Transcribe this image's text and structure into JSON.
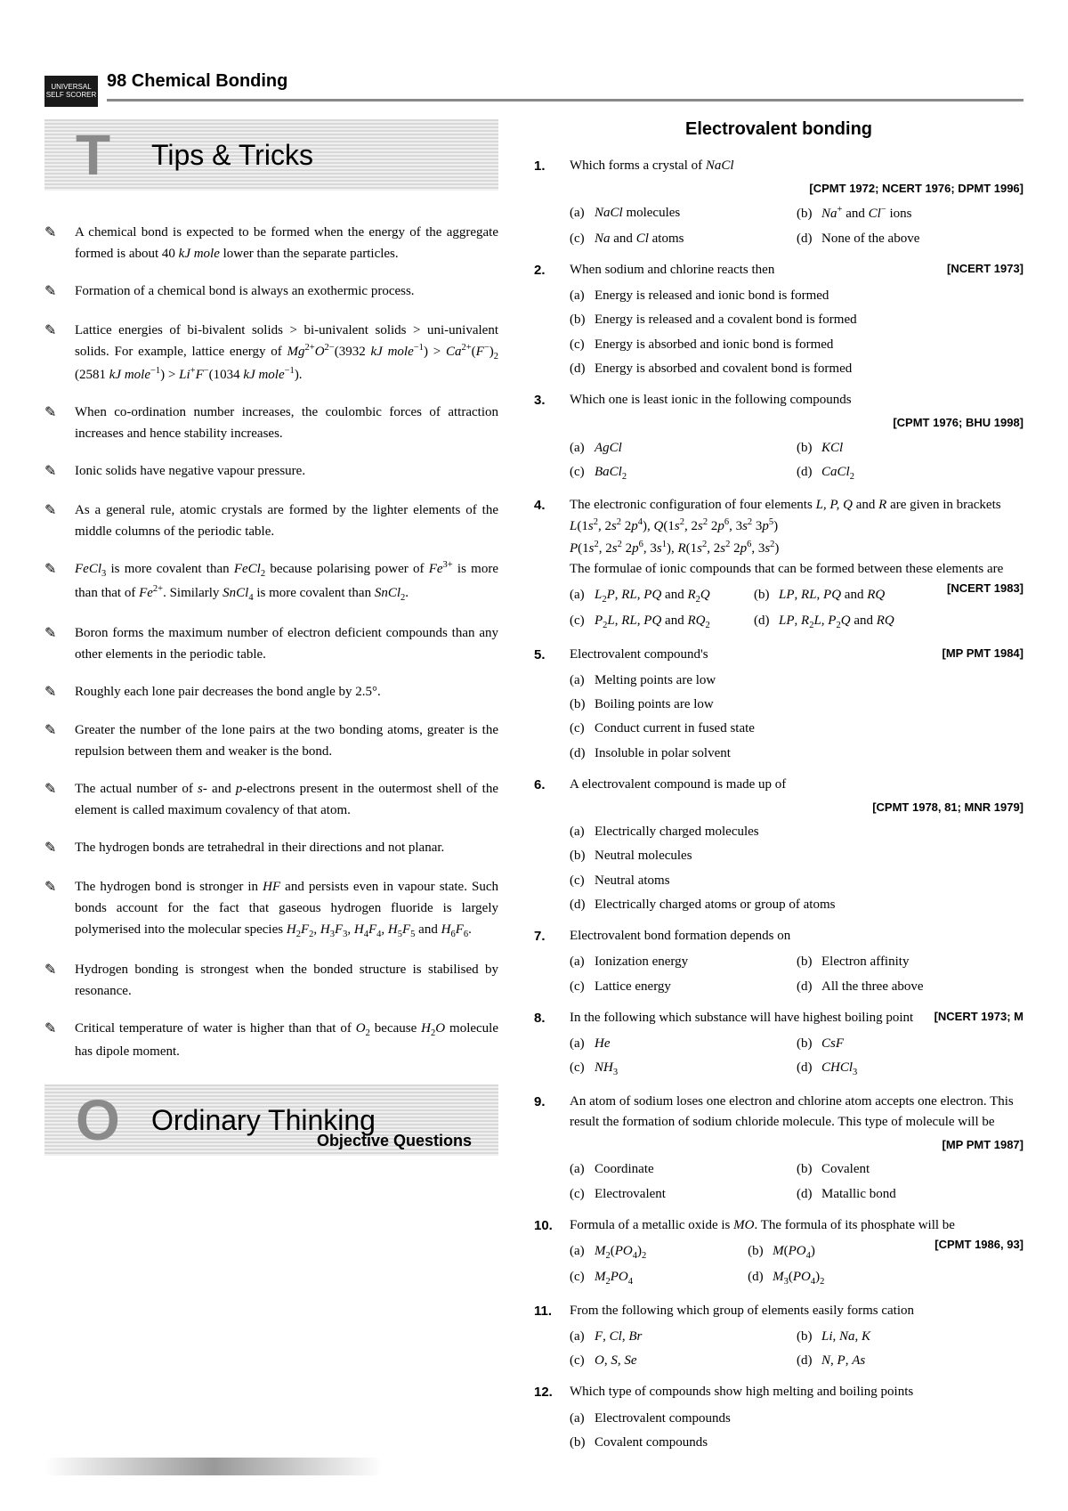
{
  "badge": {
    "line1": "UNIVERSAL",
    "line2": "SELF SCORER"
  },
  "header": "98 Chemical Bonding",
  "tips_banner": {
    "glyph": "T",
    "title": "Tips & Tricks"
  },
  "tips": [
    "A chemical bond is expected to be formed when the energy of the aggregate formed is about 40 <i>kJ mole</i> lower than the separate particles.",
    "Formation of a chemical bond is always an exothermic process.",
    "Lattice energies of bi-bivalent solids > bi-univalent solids > uni-univalent solids. For example, lattice energy of <i>Mg</i><sup>2+</sup><i>O</i><sup>2−</sup>(3932 <i>kJ mole</i><sup>−1</sup>) > <i>Ca</i><sup>2+</sup>(<i>F</i><sup>−</sup>)<sub>2</sub> (2581 <i>kJ mole</i><sup>−1</sup>) > <i>Li</i><sup>+</sup><i>F</i><sup>−</sup>(1034 <i>kJ mole</i><sup>−1</sup>).",
    "When co-ordination number increases, the coulombic forces of attraction increases and hence stability increases.",
    "Ionic solids have negative vapour pressure.",
    "As a general rule, atomic crystals are formed by the lighter elements of the middle columns of the periodic table.",
    "<i>FeCl</i><sub>3</sub> is more covalent than <i>FeCl</i><sub>2</sub> because polarising power of <i>Fe</i><sup>3+</sup> is more than that of <i>Fe</i><sup>2+</sup>. Similarly <i>SnCl</i><sub>4</sub> is more covalent than <i>SnCl</i><sub>2</sub>.",
    "Boron forms the maximum number of electron deficient compounds than any other elements in the periodic table.",
    "Roughly each lone pair decreases the bond angle by 2.5°.",
    "Greater the number of the lone pairs at the two bonding atoms, greater is the repulsion between them and weaker is the bond.",
    "The actual number of <i>s</i>- and <i>p</i>-electrons present in the outermost shell of the element is called maximum covalency of that atom.",
    "The hydrogen bonds are tetrahedral in their directions and not planar.",
    "The hydrogen bond is stronger in <i>HF</i> and persists even in vapour state. Such bonds account for the fact that gaseous hydrogen fluoride is largely polymerised into the molecular species <i>H</i><sub>2</sub><i>F</i><sub>2</sub>, <i>H</i><sub>3</sub><i>F</i><sub>3</sub>, <i>H</i><sub>4</sub><i>F</i><sub>4</sub>, <i>H</i><sub>5</sub><i>F</i><sub>5</sub> and <i>H</i><sub>6</sub><i>F</i><sub>6</sub>.",
    "Hydrogen bonding is strongest when the bonded structure is stabilised by resonance.",
    "Critical temperature of water is higher than that of <i>O</i><sub>2</sub> because <i>H</i><sub>2</sub><i>O</i> molecule has dipole moment."
  ],
  "ot_banner": {
    "glyph": "O",
    "title": "Ordinary Thinking",
    "sub": "Objective Questions"
  },
  "right_title": "Electrovalent bonding",
  "questions": [
    {
      "n": "1.",
      "text": "Which forms a crystal of <i>NaCl</i>",
      "tag": "[CPMT 1972; NCERT 1976; DPMT 1996]",
      "opts": [
        {
          "l": "(a)",
          "t": "<i>NaCl</i> molecules"
        },
        {
          "l": "(b)",
          "t": "<i>Na</i><sup>+</sup> and <i>Cl</i><sup>−</sup> ions"
        },
        {
          "l": "(c)",
          "t": "<i>Na</i> and <i>Cl</i> atoms"
        },
        {
          "l": "(d)",
          "t": "None of the above"
        }
      ]
    },
    {
      "n": "2.",
      "text": "When sodium and chlorine reacts then",
      "tag_inline": "[NCERT 1973]",
      "opts": [
        {
          "l": "(a)",
          "t": "Energy is released and ionic bond is formed",
          "full": true
        },
        {
          "l": "(b)",
          "t": "Energy is released and a covalent bond is formed",
          "full": true
        },
        {
          "l": "(c)",
          "t": "Energy is absorbed and ionic bond is formed",
          "full": true
        },
        {
          "l": "(d)",
          "t": "Energy is absorbed and covalent bond is formed",
          "full": true
        }
      ]
    },
    {
      "n": "3.",
      "text": "Which one is least ionic in the following compounds",
      "tag": "[CPMT 1976; BHU 1998]",
      "opts": [
        {
          "l": "(a)",
          "t": "<i>AgCl</i>"
        },
        {
          "l": "(b)",
          "t": "<i>KCl</i>"
        },
        {
          "l": "(c)",
          "t": "<i>BaCl</i><sub>2</sub>"
        },
        {
          "l": "(d)",
          "t": "<i>CaCl</i><sub>2</sub>"
        }
      ]
    },
    {
      "n": "4.",
      "text": "The electronic configuration of four elements <i>L, P, Q</i> and <i>R</i> are given in brackets<br><i>L</i>(1<i>s</i><sup>2</sup>, 2<i>s</i><sup>2</sup> 2<i>p</i><sup>4</sup>), <i>Q</i>(1<i>s</i><sup>2</sup>, 2<i>s</i><sup>2</sup> 2<i>p</i><sup>6</sup>, 3<i>s</i><sup>2</sup> 3<i>p</i><sup>5</sup>)<br><i>P</i>(1<i>s</i><sup>2</sup>, 2<i>s</i><sup>2</sup> 2<i>p</i><sup>6</sup>, 3<i>s</i><sup>1</sup>), <i>R</i>(1<i>s</i><sup>2</sup>, 2<i>s</i><sup>2</sup> 2<i>p</i><sup>6</sup>, 3<i>s</i><sup>2</sup>)<br>The formulae of ionic compounds that can be formed between these elements are",
      "tag_inline": "[NCERT 1983]",
      "opts": [
        {
          "l": "(a)",
          "t": "<i>L</i><sub>2</sub><i>P</i>, <i>RL</i>, <i>PQ</i> and <i>R</i><sub>2</sub><i>Q</i>"
        },
        {
          "l": "(b)",
          "t": "<i>LP</i>, <i>RL</i>, <i>PQ</i> and <i>RQ</i>"
        },
        {
          "l": "(c)",
          "t": "<i>P</i><sub>2</sub><i>L</i>, <i>RL</i>, <i>PQ</i> and <i>RQ</i><sub>2</sub>"
        },
        {
          "l": "(d)",
          "t": "<i>LP</i>, <i>R</i><sub>2</sub><i>L</i>, <i>P</i><sub>2</sub><i>Q</i> and <i>RQ</i>"
        }
      ]
    },
    {
      "n": "5.",
      "text": "Electrovalent compound's",
      "tag_inline": "[MP PMT 1984]",
      "opts": [
        {
          "l": "(a)",
          "t": "Melting points are low",
          "full": true
        },
        {
          "l": "(b)",
          "t": "Boiling points are low",
          "full": true
        },
        {
          "l": "(c)",
          "t": "Conduct current in fused state",
          "full": true
        },
        {
          "l": "(d)",
          "t": "Insoluble in polar solvent",
          "full": true
        }
      ]
    },
    {
      "n": "6.",
      "text": "A electrovalent compound is made up of",
      "tag": "[CPMT 1978, 81; MNR 1979]",
      "opts": [
        {
          "l": "(a)",
          "t": "Electrically charged molecules",
          "full": true
        },
        {
          "l": "(b)",
          "t": "Neutral molecules",
          "full": true
        },
        {
          "l": "(c)",
          "t": "Neutral atoms",
          "full": true
        },
        {
          "l": "(d)",
          "t": "Electrically charged atoms or group of atoms",
          "full": true
        }
      ]
    },
    {
      "n": "7.",
      "text": "Electrovalent bond formation depends on",
      "opts": [
        {
          "l": "(a)",
          "t": "Ionization energy"
        },
        {
          "l": "(b)",
          "t": "Electron affinity"
        },
        {
          "l": "(c)",
          "t": "Lattice energy"
        },
        {
          "l": "(d)",
          "t": "All the three above"
        }
      ]
    },
    {
      "n": "8.",
      "text": "In the following which substance will have highest boiling point",
      "tag_inline": "[NCERT 1973; M",
      "opts": [
        {
          "l": "(a)",
          "t": "<i>He</i>"
        },
        {
          "l": "(b)",
          "t": "<i>CsF</i>"
        },
        {
          "l": "(c)",
          "t": "<i>NH</i><sub>3</sub>"
        },
        {
          "l": "(d)",
          "t": "<i>CHCl</i><sub>3</sub>"
        }
      ]
    },
    {
      "n": "9.",
      "text": "An atom of sodium loses one electron and chlorine atom accepts one electron. This result the formation of sodium chloride molecule. This type of molecule will be",
      "tag": "[MP PMT 1987]",
      "opts": [
        {
          "l": "(a)",
          "t": "Coordinate"
        },
        {
          "l": "(b)",
          "t": "Covalent"
        },
        {
          "l": "(c)",
          "t": "Electrovalent"
        },
        {
          "l": "(d)",
          "t": "Matallic bond"
        }
      ]
    },
    {
      "n": "10.",
      "text": "Formula of a metallic oxide is <i>MO</i>. The formula of its phosphate will be",
      "tag_inline": "[CPMT 1986, 93]",
      "opts": [
        {
          "l": "(a)",
          "t": "<i>M</i><sub>2</sub>(<i>PO</i><sub>4</sub>)<sub>2</sub>"
        },
        {
          "l": "(b)",
          "t": "<i>M</i>(<i>PO</i><sub>4</sub>)"
        },
        {
          "l": "(c)",
          "t": "<i>M</i><sub>2</sub><i>PO</i><sub>4</sub>"
        },
        {
          "l": "(d)",
          "t": "<i>M</i><sub>3</sub>(<i>PO</i><sub>4</sub>)<sub>2</sub>"
        }
      ]
    },
    {
      "n": "11.",
      "text": "From the following which group of elements easily forms cation",
      "opts": [
        {
          "l": "(a)",
          "t": "<i>F</i>, <i>Cl</i>, <i>Br</i>"
        },
        {
          "l": "(b)",
          "t": "<i>Li</i>, <i>Na</i>, <i>K</i>"
        },
        {
          "l": "(c)",
          "t": "<i>O</i>, <i>S</i>, <i>Se</i>"
        },
        {
          "l": "(d)",
          "t": "<i>N</i>, <i>P</i>, <i>As</i>"
        }
      ]
    },
    {
      "n": "12.",
      "text": "Which type of compounds show high melting and boiling points",
      "opts": [
        {
          "l": "(a)",
          "t": "Electrovalent compounds",
          "full": true
        },
        {
          "l": "(b)",
          "t": "Covalent compounds",
          "full": true
        }
      ]
    }
  ]
}
